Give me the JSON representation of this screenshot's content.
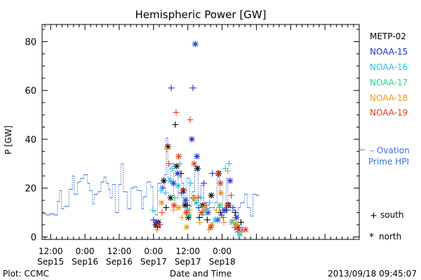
{
  "chart_data": {
    "type": "scatter",
    "title": "Hemispheric Power [GW]",
    "ylabel": "P [GW]",
    "xlabel": "Date and Time",
    "footer_left": "Plot: CCMC",
    "footer_right": "2013/09/18 09:45:07",
    "ylim": [
      -1,
      87
    ],
    "xlim_hours": [
      -15,
      96
    ],
    "y_ticks": [
      0,
      20,
      40,
      60,
      80
    ],
    "x_ticks": [
      {
        "h": -12,
        "time": "12:00",
        "date": "Sep15"
      },
      {
        "h": 0,
        "time": "0:00",
        "date": "Sep16"
      },
      {
        "h": 12,
        "time": "12:00",
        "date": "Sep16"
      },
      {
        "h": 24,
        "time": "0:00",
        "date": "Sep17"
      },
      {
        "h": 36,
        "time": "12:00",
        "date": "Sep17"
      },
      {
        "h": 48,
        "time": "0:00",
        "date": "Sep18"
      }
    ],
    "x_reference": "Sep16 0:00",
    "legend_title": "",
    "legend": [
      {
        "name": "METP-02",
        "color": "#000000"
      },
      {
        "name": "NOAA-15",
        "color": "#1a2fd6"
      },
      {
        "name": "NOAA-16",
        "color": "#22c3e6"
      },
      {
        "name": "NOAA-17",
        "color": "#22d68c"
      },
      {
        "name": "NOAA-18",
        "color": "#f0961e"
      },
      {
        "name": "NOAA-19",
        "color": "#e23a1e"
      }
    ],
    "ovation": {
      "name_line1": "– Ovation",
      "name_line2": "Prime HPI",
      "color": "#3a6fd8",
      "steps": [
        [
          -15,
          9.5
        ],
        [
          -13.6,
          9
        ],
        [
          -12.2,
          9.5
        ],
        [
          -10.8,
          9
        ],
        [
          -9.6,
          14.5
        ],
        [
          -8.9,
          19
        ],
        [
          -8.2,
          11.5
        ],
        [
          -7.4,
          12.5
        ],
        [
          -5.6,
          19.5
        ],
        [
          -4.4,
          25
        ],
        [
          -3.8,
          17.5
        ],
        [
          -2.6,
          22.5
        ],
        [
          -1.6,
          24
        ],
        [
          -0.4,
          25.5
        ],
        [
          0.8,
          22
        ],
        [
          1.6,
          19
        ],
        [
          2.6,
          13.5
        ],
        [
          3.2,
          17.5
        ],
        [
          4.4,
          18.5
        ],
        [
          5.6,
          22.5
        ],
        [
          6.6,
          24.5
        ],
        [
          7.4,
          22
        ],
        [
          8.2,
          19.5
        ],
        [
          8.8,
          16
        ],
        [
          9.6,
          21.5
        ],
        [
          10.6,
          10
        ],
        [
          11.8,
          21.5
        ],
        [
          12.6,
          30
        ],
        [
          13.4,
          18.5
        ],
        [
          14.8,
          11.5
        ],
        [
          16,
          20
        ],
        [
          17,
          20.5
        ],
        [
          18.2,
          19
        ],
        [
          19.8,
          11.5
        ],
        [
          20.4,
          16.5
        ],
        [
          21.6,
          22.5
        ],
        [
          23,
          20.5
        ],
        [
          23.8,
          10.5
        ],
        [
          24.6,
          9
        ],
        [
          25.4,
          22
        ],
        [
          26.4,
          20.5
        ],
        [
          27.8,
          25.5
        ],
        [
          28.4,
          40.5
        ],
        [
          29,
          24
        ],
        [
          30,
          30
        ],
        [
          31,
          16
        ],
        [
          32.6,
          24.5
        ],
        [
          33.8,
          22
        ],
        [
          34.6,
          16
        ],
        [
          35.6,
          24
        ],
        [
          36.6,
          12.5
        ],
        [
          37.4,
          18.5
        ],
        [
          38.4,
          29
        ],
        [
          39.6,
          16.5
        ],
        [
          40.6,
          21
        ],
        [
          41.6,
          14
        ],
        [
          42.6,
          11.5
        ],
        [
          43.4,
          12
        ],
        [
          44.2,
          12
        ],
        [
          45.4,
          14
        ],
        [
          46.2,
          24.5
        ],
        [
          47.2,
          17.5
        ],
        [
          48.2,
          10
        ],
        [
          49.4,
          24
        ],
        [
          50,
          14
        ],
        [
          51,
          10.5
        ],
        [
          51.8,
          11
        ],
        [
          52.8,
          5.5
        ],
        [
          53.6,
          12
        ],
        [
          54.4,
          14
        ],
        [
          55.8,
          17.5
        ],
        [
          56.8,
          12
        ],
        [
          57.8,
          8.5
        ],
        [
          58.8,
          17.5
        ],
        [
          60,
          17
        ]
      ]
    },
    "series": [
      {
        "name": "METP-02",
        "color": "#000000",
        "points": [
          [
            24.8,
            5,
            "x"
          ],
          [
            25.4,
            4,
            "+"
          ],
          [
            25.6,
            6,
            "x"
          ],
          [
            26.2,
            5,
            "+"
          ],
          [
            27.6,
            23,
            "x"
          ],
          [
            28.4,
            12,
            "+"
          ],
          [
            29.0,
            37,
            "x"
          ],
          [
            30.0,
            16,
            "x"
          ],
          [
            31.6,
            46,
            "+"
          ],
          [
            32.1,
            29,
            "x"
          ],
          [
            33.6,
            26,
            "+"
          ],
          [
            34.4,
            19,
            "x"
          ],
          [
            35.0,
            13,
            "x"
          ],
          [
            35.8,
            13,
            "+"
          ],
          [
            36.2,
            8,
            "x"
          ],
          [
            38.0,
            16,
            "+"
          ],
          [
            39.4,
            28,
            "x"
          ],
          [
            40.0,
            8,
            "+"
          ],
          [
            41.2,
            13,
            "x"
          ],
          [
            42.8,
            7,
            "+"
          ],
          [
            44.2,
            17,
            "x"
          ],
          [
            46.8,
            26,
            "x"
          ],
          [
            47.4,
            10,
            "+"
          ],
          [
            49.6,
            11,
            "+"
          ],
          [
            50.2,
            13,
            "x"
          ],
          [
            52.6,
            10,
            "+"
          ],
          [
            53.4,
            4,
            "x"
          ],
          [
            54.6,
            6,
            "+"
          ]
        ]
      },
      {
        "name": "NOAA-15",
        "color": "#1a2fd6",
        "points": [
          [
            24.0,
            7,
            "+"
          ],
          [
            25.0,
            6,
            "x"
          ],
          [
            27.2,
            20,
            "+"
          ],
          [
            30.2,
            61,
            "+"
          ],
          [
            31.0,
            22,
            "x"
          ],
          [
            32.4,
            26,
            "x"
          ],
          [
            33.8,
            18,
            "+"
          ],
          [
            35.2,
            15,
            "x"
          ],
          [
            37.4,
            40,
            "x"
          ],
          [
            37.8,
            61,
            "+"
          ],
          [
            38.6,
            79,
            "x"
          ],
          [
            39.2,
            33,
            "x"
          ],
          [
            39.8,
            12,
            "+"
          ],
          [
            41.6,
            22,
            "+"
          ],
          [
            43.0,
            10,
            "x"
          ],
          [
            44.6,
            26,
            "+"
          ],
          [
            46.4,
            7,
            "x"
          ],
          [
            47.8,
            9,
            "+"
          ],
          [
            48.8,
            11,
            "x"
          ],
          [
            50.8,
            23,
            "x"
          ],
          [
            51.8,
            12,
            "+"
          ],
          [
            53.0,
            8,
            "x"
          ],
          [
            55.0,
            3,
            "+"
          ]
        ]
      },
      {
        "name": "NOAA-16",
        "color": "#22c3e6",
        "points": [
          [
            23.8,
            11,
            "+"
          ],
          [
            26.6,
            19,
            "+"
          ],
          [
            28.2,
            18,
            "+"
          ],
          [
            29.8,
            23,
            "x"
          ],
          [
            30.6,
            28,
            "+"
          ],
          [
            32.6,
            21,
            "x"
          ],
          [
            33.2,
            30,
            "+"
          ],
          [
            34.6,
            16,
            "+"
          ],
          [
            36.0,
            11,
            "x"
          ],
          [
            37.0,
            22,
            "+"
          ],
          [
            39.0,
            14,
            "x"
          ],
          [
            40.6,
            16,
            "+"
          ],
          [
            42.2,
            11,
            "x"
          ],
          [
            43.6,
            14,
            "+"
          ],
          [
            45.6,
            7,
            "x"
          ],
          [
            47.0,
            12,
            "+"
          ],
          [
            49.2,
            28,
            "+"
          ],
          [
            50.4,
            30,
            "+"
          ],
          [
            51.4,
            6,
            "x"
          ],
          [
            53.4,
            2,
            "+"
          ],
          [
            54.2,
            1,
            "x"
          ]
        ]
      },
      {
        "name": "NOAA-17",
        "color": "#22d68c",
        "points": [
          [
            31.4,
            16,
            "+"
          ],
          [
            36.4,
            9,
            "x"
          ],
          [
            41.2,
            9,
            "+"
          ],
          [
            47.2,
            13,
            "x"
          ],
          [
            52.2,
            6,
            "+"
          ]
        ]
      },
      {
        "name": "NOAA-18",
        "color": "#f0961e",
        "points": [
          [
            25.2,
            3,
            "+"
          ],
          [
            26.8,
            14,
            "x"
          ],
          [
            28.6,
            36,
            "+"
          ],
          [
            31.0,
            11,
            "+"
          ],
          [
            32.8,
            12,
            "x"
          ],
          [
            34.0,
            8,
            "+"
          ],
          [
            35.6,
            4,
            "x"
          ],
          [
            36.6,
            11,
            "+"
          ],
          [
            38.4,
            16,
            "x"
          ],
          [
            40.2,
            6,
            "+"
          ],
          [
            41.8,
            12,
            "x"
          ],
          [
            43.4,
            3,
            "+"
          ],
          [
            44.4,
            5,
            "x"
          ],
          [
            46.0,
            11,
            "+"
          ],
          [
            47.6,
            18,
            "x"
          ],
          [
            48.6,
            6,
            "+"
          ],
          [
            50.0,
            27,
            "+"
          ],
          [
            51.6,
            7,
            "+"
          ],
          [
            53.0,
            5,
            "x"
          ],
          [
            54.8,
            2,
            "+"
          ]
        ]
      },
      {
        "name": "NOAA-19",
        "color": "#e23a1e",
        "points": [
          [
            25.8,
            5,
            "x"
          ],
          [
            27.0,
            10,
            "+"
          ],
          [
            29.4,
            30,
            "+"
          ],
          [
            31.2,
            13,
            "x"
          ],
          [
            31.9,
            51,
            "+"
          ],
          [
            32.8,
            33,
            "x"
          ],
          [
            34.2,
            19,
            "+"
          ],
          [
            35.4,
            10,
            "x"
          ],
          [
            36.8,
            48,
            "+"
          ],
          [
            38.2,
            30,
            "x"
          ],
          [
            39.6,
            16,
            "+"
          ],
          [
            40.8,
            10,
            "x"
          ],
          [
            42.4,
            13,
            "+"
          ],
          [
            44.0,
            4,
            "x"
          ],
          [
            46.6,
            26,
            "x"
          ],
          [
            47.4,
            22,
            "x"
          ],
          [
            48.4,
            8,
            "+"
          ],
          [
            49.8,
            13,
            "x"
          ],
          [
            51.2,
            17,
            "+"
          ],
          [
            52.4,
            4,
            "+"
          ],
          [
            53.8,
            3,
            "x"
          ],
          [
            56.2,
            3,
            "x"
          ]
        ]
      }
    ],
    "marker_key": [
      {
        "symbol": "+",
        "label": "south"
      },
      {
        "symbol": "*",
        "label": "north"
      }
    ]
  }
}
